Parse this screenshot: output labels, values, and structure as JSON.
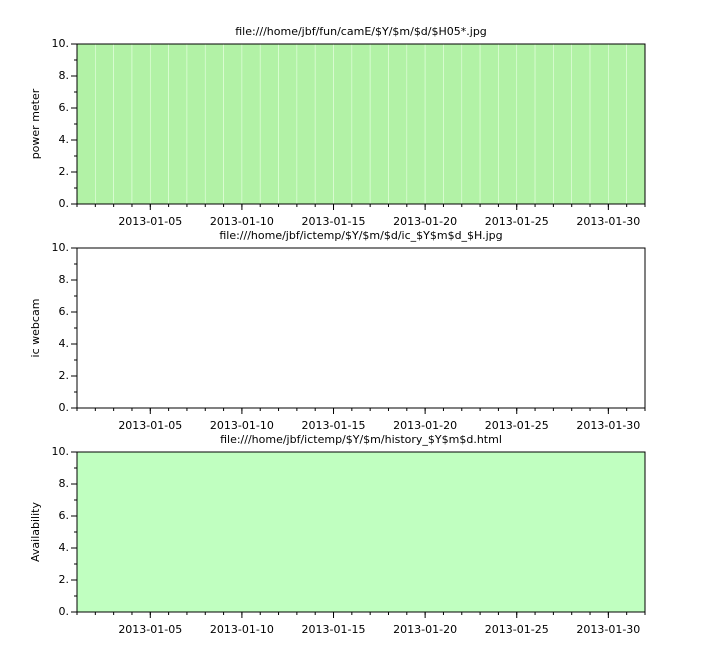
{
  "chart_data": [
    {
      "type": "bar",
      "title": "file:///home/jbf/fun/camE/$Y/$m/$d/$H05*.jpg",
      "ylabel": "power meter",
      "x": [
        "2013-01-01",
        "2013-01-02",
        "2013-01-03",
        "2013-01-04",
        "2013-01-05",
        "2013-01-06",
        "2013-01-07",
        "2013-01-08",
        "2013-01-09",
        "2013-01-10",
        "2013-01-11",
        "2013-01-12",
        "2013-01-13",
        "2013-01-14",
        "2013-01-15",
        "2013-01-16",
        "2013-01-17",
        "2013-01-18",
        "2013-01-19",
        "2013-01-20",
        "2013-01-21",
        "2013-01-22",
        "2013-01-23",
        "2013-01-24",
        "2013-01-25",
        "2013-01-26",
        "2013-01-27",
        "2013-01-28",
        "2013-01-29",
        "2013-01-30",
        "2013-01-31"
      ],
      "values": [
        10,
        10,
        10,
        10,
        10,
        10,
        10,
        10,
        10,
        10,
        10,
        10,
        10,
        10,
        10,
        10,
        10,
        10,
        10,
        10,
        10,
        10,
        10,
        10,
        10,
        10,
        10,
        10,
        10,
        10,
        10
      ],
      "color": "#b2f2a6",
      "xlim": [
        "2013-01-01",
        "2013-02-01"
      ],
      "xticks": [
        "2013-01-05",
        "2013-01-10",
        "2013-01-15",
        "2013-01-20",
        "2013-01-25",
        "2013-01-30"
      ],
      "ylim": [
        0,
        10
      ],
      "yticks": [
        {
          "value": 0,
          "label": "0."
        },
        {
          "value": 2,
          "label": "2."
        },
        {
          "value": 4,
          "label": "4."
        },
        {
          "value": 6,
          "label": "6."
        },
        {
          "value": 8,
          "label": "8."
        },
        {
          "value": 10,
          "label": "10."
        }
      ]
    },
    {
      "type": "bar",
      "title": "file:///home/jbf/ictemp/$Y/$m/$d/ic_$Y$m$d_$H.jpg",
      "ylabel": "ic webcam",
      "xlim": [
        "2013-01-01",
        "2013-02-01"
      ],
      "xticks": [
        "2013-01-05",
        "2013-01-10",
        "2013-01-15",
        "2013-01-20",
        "2013-01-25",
        "2013-01-30"
      ],
      "ylim": [
        0,
        10
      ],
      "yticks": [
        {
          "value": 0,
          "label": "0."
        },
        {
          "value": 2,
          "label": "2."
        },
        {
          "value": 4,
          "label": "4."
        },
        {
          "value": 6,
          "label": "6."
        },
        {
          "value": 8,
          "label": "8."
        },
        {
          "value": 10,
          "label": "10."
        }
      ]
    },
    {
      "type": "area",
      "title": "file:///home/jbf/ictemp/$Y/$m/history_$Y$m$d.html",
      "ylabel": "Availability",
      "x": [
        "2013-01-01",
        "2013-01-02",
        "2013-01-03",
        "2013-01-04",
        "2013-01-05",
        "2013-01-06",
        "2013-01-07",
        "2013-01-08",
        "2013-01-09",
        "2013-01-10",
        "2013-01-11",
        "2013-01-12",
        "2013-01-13",
        "2013-01-14",
        "2013-01-15",
        "2013-01-16",
        "2013-01-17",
        "2013-01-18",
        "2013-01-19",
        "2013-01-20",
        "2013-01-21",
        "2013-01-22",
        "2013-01-23",
        "2013-01-24",
        "2013-01-25",
        "2013-01-26",
        "2013-01-27",
        "2013-01-28",
        "2013-01-29",
        "2013-01-30",
        "2013-01-31",
        "2013-02-01"
      ],
      "values": [
        10,
        10,
        10,
        10,
        10,
        10,
        10,
        10,
        10,
        10,
        10,
        10,
        10,
        10,
        10,
        10,
        10,
        10,
        10,
        10,
        10,
        10,
        10,
        10,
        10,
        10,
        10,
        10,
        10,
        10,
        10,
        10
      ],
      "color": "#c0ffc0",
      "xlim": [
        "2013-01-01",
        "2013-02-01"
      ],
      "xticks": [
        "2013-01-05",
        "2013-01-10",
        "2013-01-15",
        "2013-01-20",
        "2013-01-25",
        "2013-01-30"
      ],
      "ylim": [
        0,
        10
      ],
      "yticks": [
        {
          "value": 0,
          "label": "0."
        },
        {
          "value": 2,
          "label": "2."
        },
        {
          "value": 4,
          "label": "4."
        },
        {
          "value": 6,
          "label": "6."
        },
        {
          "value": 8,
          "label": "8."
        },
        {
          "value": 10,
          "label": "10."
        }
      ]
    }
  ]
}
